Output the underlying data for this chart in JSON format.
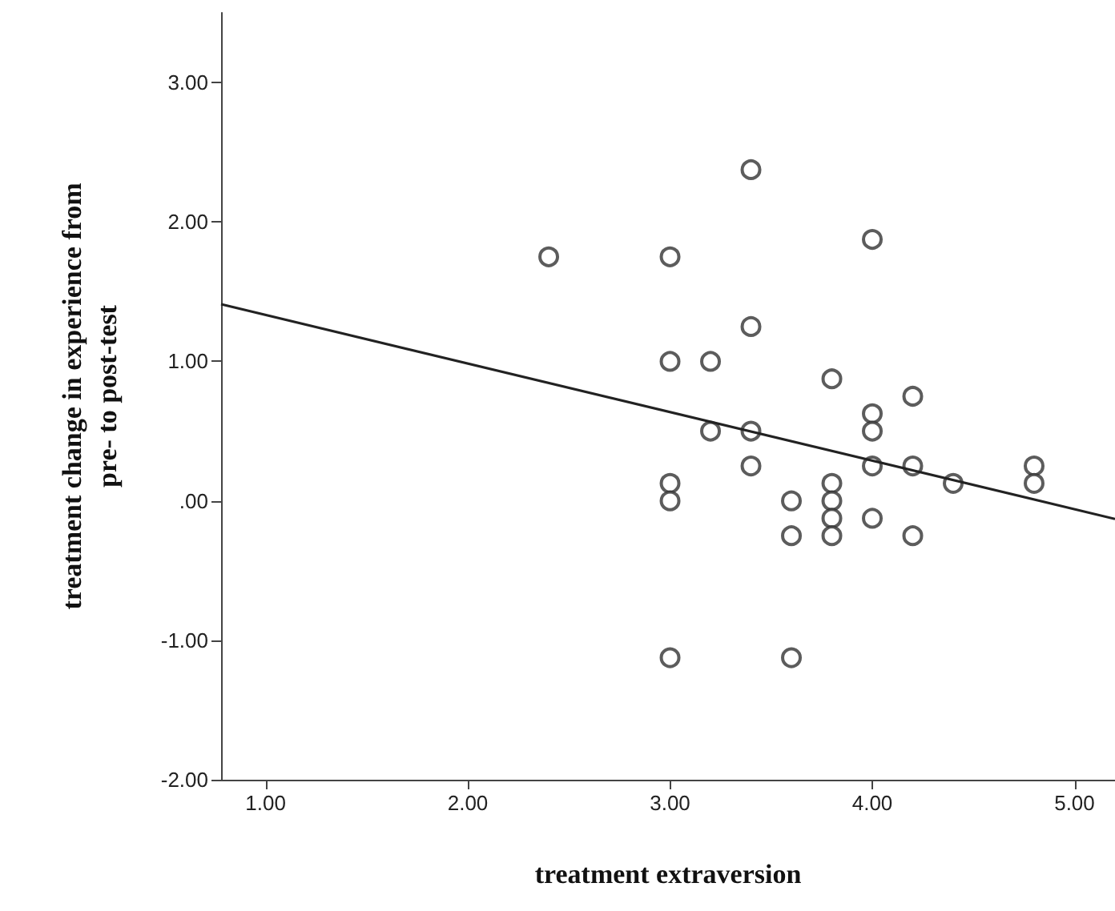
{
  "chart_data": {
    "type": "scatter",
    "xlabel": "treatment extraversion",
    "ylabel": "treatment change in experience from\npre- to post-test",
    "xlim": [
      0.78,
      5.2
    ],
    "ylim": [
      -2,
      3.5
    ],
    "xticks": [
      {
        "value": 1,
        "label": "1.00"
      },
      {
        "value": 2,
        "label": "2.00"
      },
      {
        "value": 3,
        "label": "3.00"
      },
      {
        "value": 4,
        "label": "4.00"
      },
      {
        "value": 5,
        "label": "5.00"
      }
    ],
    "yticks": [
      {
        "value": -2,
        "label": "-2.00"
      },
      {
        "value": -1,
        "label": "-1.00"
      },
      {
        "value": 0,
        "label": ".00"
      },
      {
        "value": 1,
        "label": "1.00"
      },
      {
        "value": 2,
        "label": "2.00"
      },
      {
        "value": 3,
        "label": "3.00"
      }
    ],
    "grid": false,
    "marker": "circle",
    "series": [
      {
        "color": "#333333",
        "x": [
          2.4,
          3.0,
          3.0,
          3.0,
          3.0,
          3.0,
          3.2,
          3.2,
          3.4,
          3.4,
          3.4,
          3.4,
          3.6,
          3.6,
          3.6,
          3.8,
          3.8,
          3.8,
          3.8,
          3.8,
          4.0,
          4.0,
          4.0,
          4.0,
          4.0,
          4.2,
          4.2,
          4.2,
          4.4,
          4.8,
          4.8
        ],
        "values": [
          1.75,
          1.75,
          1.0,
          0.125,
          0,
          -1.125,
          1.0,
          0.5,
          2.375,
          1.25,
          0.5,
          0.25,
          0,
          -0.25,
          -1.125,
          0.875,
          0.125,
          0,
          -0.125,
          -0.25,
          1.875,
          0.625,
          0.5,
          0.25,
          -0.125,
          0.75,
          0.25,
          -0.25,
          0.125,
          0.25,
          0.125
        ]
      },
      {
        "type": "line",
        "color": "#222222",
        "marker": "none",
        "x": [
          0.78,
          5.2
        ],
        "values": [
          1.41,
          -0.13
        ]
      }
    ]
  }
}
